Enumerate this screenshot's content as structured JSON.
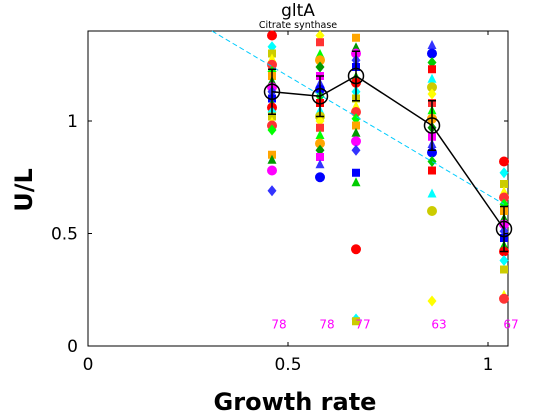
{
  "chart_data": {
    "type": "scatter",
    "title": "gltA",
    "subtitle": "Citrate synthase",
    "xlabel": "Growth rate",
    "ylabel": "U/L",
    "xlim": [
      0,
      1.05
    ],
    "ylim": [
      0,
      1.4
    ],
    "xticks": [
      0,
      0.5,
      1
    ],
    "yticks": [
      0,
      0.5,
      1
    ],
    "xtick_labels": [
      "0",
      "0.5",
      "1"
    ],
    "ytick_labels": [
      "0",
      "0.5",
      "1"
    ],
    "grid": false,
    "legend": "none",
    "mean_series": {
      "x": [
        0.46,
        0.58,
        0.67,
        0.86,
        1.04
      ],
      "y": [
        1.13,
        1.11,
        1.2,
        0.98,
        0.52
      ],
      "err": [
        0.1,
        0.09,
        0.11,
        0.11,
        0.1
      ],
      "color": "#000000"
    },
    "fit_line": {
      "x": [
        0.31,
        1.04
      ],
      "y": [
        1.4,
        0.63
      ],
      "color": "#00ccff",
      "style": "dashed"
    },
    "counts": [
      {
        "x": 0.46,
        "label": "78"
      },
      {
        "x": 0.58,
        "label": "78"
      },
      {
        "x": 0.67,
        "label": "77"
      },
      {
        "x": 0.86,
        "label": "63"
      },
      {
        "x": 1.04,
        "label": "67"
      }
    ],
    "count_label_y": 0.1,
    "count_color": "#ff00ff",
    "replicates": [
      {
        "x": 0.46,
        "y": [
          1.38,
          1.33,
          1.3,
          1.28,
          1.25,
          1.22,
          1.2,
          1.18,
          1.15,
          1.13,
          1.1,
          1.08,
          1.06,
          1.04,
          1.02,
          1.0,
          0.98,
          0.96,
          0.85,
          0.83,
          0.78,
          0.69
        ]
      },
      {
        "x": 0.58,
        "y": [
          1.38,
          1.35,
          1.3,
          1.27,
          1.24,
          1.2,
          1.17,
          1.14,
          1.11,
          1.08,
          1.05,
          1.02,
          1.0,
          0.97,
          0.94,
          0.9,
          0.87,
          0.84,
          0.81,
          0.75
        ]
      },
      {
        "x": 0.67,
        "y": [
          1.37,
          1.33,
          1.3,
          1.27,
          1.24,
          1.2,
          1.17,
          1.13,
          1.1,
          1.07,
          1.04,
          1.01,
          0.98,
          0.95,
          0.91,
          0.87,
          0.77,
          0.73,
          0.43,
          0.12,
          0.11
        ]
      },
      {
        "x": 0.86,
        "y": [
          1.34,
          1.3,
          1.26,
          1.23,
          1.19,
          1.15,
          1.12,
          1.08,
          1.05,
          1.01,
          0.97,
          0.93,
          0.9,
          0.86,
          0.82,
          0.78,
          0.68,
          0.6,
          0.2
        ]
      },
      {
        "x": 1.04,
        "y": [
          0.82,
          0.77,
          0.72,
          0.69,
          0.66,
          0.63,
          0.6,
          0.57,
          0.54,
          0.51,
          0.48,
          0.45,
          0.42,
          0.38,
          0.34,
          0.23,
          0.21
        ]
      }
    ],
    "palette": [
      "#ff0000",
      "#00ff00",
      "#0000ff",
      "#ffff00",
      "#ff00ff",
      "#00ffff",
      "#ffa500",
      "#00cc00",
      "#ff3333",
      "#3333ff",
      "#cccc00",
      "#009900"
    ]
  }
}
